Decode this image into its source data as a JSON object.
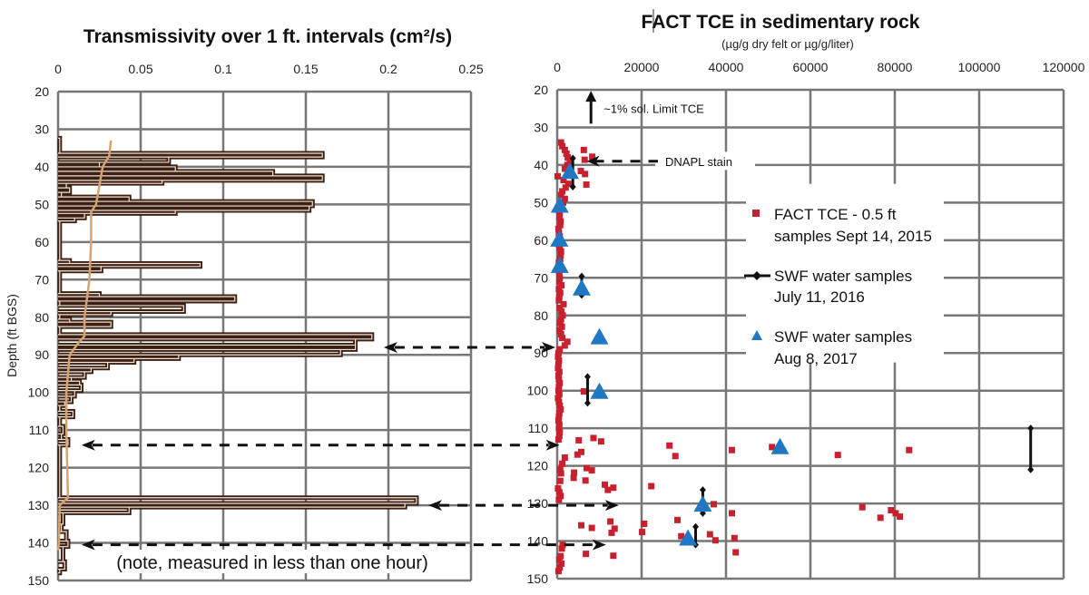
{
  "chart_data": [
    {
      "type": "line",
      "title": "Transmissivity over 1 ft. intervals (cm²/s)",
      "ylabel": "Depth (ft BGS)",
      "xlim": [
        0,
        0.25
      ],
      "ylim": [
        20,
        150
      ],
      "y_inverted": true,
      "x_axis_position": "top",
      "grid": true,
      "xticks": [
        "0",
        "0.05",
        "0.1",
        "0.15",
        "0.2",
        "0.25"
      ],
      "yticks": [
        "20",
        "30",
        "40",
        "50",
        "60",
        "70",
        "80",
        "90",
        "100",
        "110",
        "120",
        "130",
        "140",
        "150"
      ],
      "note": "(note, measured in less than one hour)",
      "colors": {
        "profile": "#3b2014",
        "smooth": "#d4a373"
      },
      "profile_intervals": [
        [
          32.4,
          36.4,
          0.001
        ],
        [
          36.4,
          37.4,
          0.16
        ],
        [
          37.4,
          38.8,
          0.067
        ],
        [
          38.8,
          40,
          0.025
        ],
        [
          40,
          41.2,
          0.071
        ],
        [
          41.2,
          42.4,
          0.13
        ],
        [
          42.4,
          43.6,
          0.16
        ],
        [
          43.6,
          44.4,
          0.063
        ],
        [
          44.4,
          45.6,
          0.005
        ],
        [
          45.6,
          46.8,
          0.007
        ],
        [
          46.8,
          48,
          0.002
        ],
        [
          48,
          49.2,
          0.043
        ],
        [
          49.2,
          50.4,
          0.154
        ],
        [
          50.4,
          51.6,
          0.152
        ],
        [
          51.6,
          52.4,
          0.071
        ],
        [
          52.4,
          53.6,
          0.016
        ],
        [
          53.6,
          54.4,
          0.01
        ],
        [
          54.4,
          64.9,
          0.001
        ],
        [
          64.9,
          65.7,
          0.007
        ],
        [
          65.7,
          66.5,
          0.086
        ],
        [
          66.5,
          67.7,
          0.026
        ],
        [
          67.7,
          73.7,
          0.001
        ],
        [
          73.7,
          74.5,
          0.025
        ],
        [
          74.5,
          75.7,
          0.107
        ],
        [
          75.7,
          76.9,
          0.001
        ],
        [
          76.9,
          78.5,
          0.076
        ],
        [
          78.5,
          79.3,
          0.032
        ],
        [
          79.3,
          80.5,
          0.001
        ],
        [
          80.5,
          81.3,
          0.007
        ],
        [
          81.3,
          82.5,
          0.032
        ],
        [
          82.5,
          84.6,
          0.001
        ],
        [
          84.6,
          85.8,
          0.19
        ],
        [
          85.8,
          87.4,
          0.18
        ],
        [
          87.4,
          88.6,
          0.18
        ],
        [
          88.6,
          90,
          0.171
        ],
        [
          90,
          91,
          0.073
        ],
        [
          91,
          92,
          0.046
        ],
        [
          92,
          93.5,
          0.03
        ],
        [
          93.5,
          94.5,
          0.02
        ],
        [
          94.5,
          96,
          0.016
        ],
        [
          96,
          97,
          0.008
        ],
        [
          97,
          98,
          0.013
        ],
        [
          98,
          99.5,
          0.014
        ],
        [
          99.5,
          101,
          0.01
        ],
        [
          101,
          102.5,
          0.008
        ],
        [
          102.5,
          103.5,
          0.004
        ],
        [
          103.5,
          105,
          0.001
        ],
        [
          105,
          106.5,
          0.009
        ],
        [
          106.5,
          109,
          0.001
        ],
        [
          109,
          111,
          0.003
        ],
        [
          111,
          112.5,
          0.002
        ],
        [
          112.5,
          114,
          0.006
        ],
        [
          114,
          128,
          0.001
        ],
        [
          128,
          129.5,
          0.217
        ],
        [
          129.5,
          130.5,
          0.21
        ],
        [
          130.5,
          132,
          0.043
        ],
        [
          132,
          135,
          0.003
        ],
        [
          135,
          137,
          0.002
        ],
        [
          137,
          139.5,
          0.005
        ],
        [
          139.5,
          141,
          0.006
        ],
        [
          141,
          145,
          0.003
        ],
        [
          145,
          147,
          0.004
        ],
        [
          147,
          148,
          0.001
        ]
      ],
      "smooth_line": [
        [
          33,
          0.032
        ],
        [
          37,
          0.031
        ],
        [
          40,
          0.027
        ],
        [
          45,
          0.025
        ],
        [
          50,
          0.023
        ],
        [
          52,
          0.02
        ],
        [
          60,
          0.02
        ],
        [
          70,
          0.019
        ],
        [
          80,
          0.016
        ],
        [
          85,
          0.016
        ],
        [
          87,
          0.012
        ],
        [
          90,
          0.007
        ],
        [
          100,
          0.005
        ],
        [
          110,
          0.005
        ],
        [
          128,
          0.006
        ],
        [
          130,
          0.001
        ],
        [
          140,
          0.0005
        ],
        [
          142,
          0
        ]
      ]
    },
    {
      "type": "scatter",
      "title": "FACT TCE in sedimentary rock",
      "subtitle": "(µg/g dry felt or µg/g/liter)",
      "xlim": [
        0,
        120000
      ],
      "ylim": [
        20,
        150
      ],
      "y_inverted": true,
      "x_axis_position": "top",
      "grid": true,
      "xticks": [
        "0",
        "20000",
        "40000",
        "60000",
        "80000",
        "100000",
        "120000"
      ],
      "yticks": [
        "20",
        "30",
        "40",
        "50",
        "60",
        "70",
        "80",
        "90",
        "100",
        "110",
        "120",
        "130",
        "140",
        "150"
      ],
      "legend_placement": "center",
      "series": [
        {
          "name": "FACT TCE - 0.5 ft samples Sept 14, 2015",
          "legend_lines": [
            "FACT TCE - 0.5 ft",
            "samples Sept 14, 2015"
          ],
          "marker": "square",
          "color": "#c8202f",
          "points": [
            [
              900,
              34
            ],
            [
              1200,
              35
            ],
            [
              1800,
              36
            ],
            [
              2200,
              37
            ],
            [
              2500,
              38
            ],
            [
              3000,
              39
            ],
            [
              2400,
              40
            ],
            [
              1800,
              41
            ],
            [
              100,
              43
            ],
            [
              1500,
              44
            ],
            [
              2600,
              45
            ],
            [
              2000,
              46
            ],
            [
              1200,
              47
            ],
            [
              900,
              48
            ],
            [
              1800,
              49
            ],
            [
              1400,
              50
            ],
            [
              600,
              51
            ],
            [
              400,
              52
            ],
            [
              600,
              53
            ],
            [
              500,
              54
            ],
            [
              800,
              55
            ],
            [
              700,
              56
            ],
            [
              300,
              57
            ],
            [
              400,
              58
            ],
            [
              600,
              59
            ],
            [
              500,
              60
            ],
            [
              300,
              61
            ],
            [
              600,
              62
            ],
            [
              900,
              63
            ],
            [
              800,
              64
            ],
            [
              700,
              65
            ],
            [
              400,
              66
            ],
            [
              300,
              67
            ],
            [
              400,
              68
            ],
            [
              500,
              69
            ],
            [
              600,
              70
            ],
            [
              500,
              71
            ],
            [
              1000,
              72
            ],
            [
              400,
              73
            ],
            [
              700,
              74
            ],
            [
              500,
              75
            ],
            [
              400,
              76
            ],
            [
              1500,
              77
            ],
            [
              600,
              78
            ],
            [
              1000,
              79
            ],
            [
              1300,
              80
            ],
            [
              900,
              81
            ],
            [
              700,
              82
            ],
            [
              1100,
              83
            ],
            [
              600,
              84
            ],
            [
              900,
              85
            ],
            [
              1200,
              86
            ],
            [
              2400,
              87
            ],
            [
              1800,
              88
            ],
            [
              600,
              89
            ],
            [
              300,
              90
            ],
            [
              200,
              91
            ],
            [
              400,
              92
            ],
            [
              300,
              93
            ],
            [
              200,
              94
            ],
            [
              500,
              95
            ],
            [
              300,
              96
            ],
            [
              400,
              97
            ],
            [
              600,
              98
            ],
            [
              400,
              99
            ],
            [
              300,
              100
            ],
            [
              500,
              101
            ],
            [
              200,
              102
            ],
            [
              400,
              103
            ],
            [
              600,
              104
            ],
            [
              800,
              105
            ],
            [
              500,
              106
            ],
            [
              400,
              107
            ],
            [
              300,
              108
            ],
            [
              500,
              109
            ],
            [
              400,
              110
            ],
            [
              600,
              111
            ],
            [
              500,
              112
            ],
            [
              300,
              113
            ],
            [
              700,
              121
            ],
            [
              900,
              122
            ],
            [
              700,
              124
            ],
            [
              200,
              126
            ],
            [
              500,
              127
            ],
            [
              800,
              128
            ],
            [
              400,
              129
            ],
            [
              1300,
              141
            ],
            [
              1100,
              142
            ],
            [
              800,
              144
            ],
            [
              500,
              145
            ],
            [
              1000,
              146
            ],
            [
              600,
              147
            ],
            [
              300,
              148
            ],
            [
              6300,
              36
            ],
            [
              6500,
              38.6
            ],
            [
              8300,
              37.8
            ],
            [
              5600,
              41.6
            ],
            [
              6600,
              42.4
            ],
            [
              6900,
              45.2
            ],
            [
              6300,
              100.2
            ],
            [
              5100,
              113.2
            ],
            [
              8600,
              112.6
            ],
            [
              10400,
              113.5
            ],
            [
              26600,
              114.6
            ],
            [
              28000,
              117.4
            ],
            [
              41400,
              115.8
            ],
            [
              50900,
              115
            ],
            [
              66500,
              117.1
            ],
            [
              83400,
              115.8
            ],
            [
              4800,
              117
            ],
            [
              5700,
              116.3
            ],
            [
              1800,
              117.8
            ],
            [
              1200,
              119.4
            ],
            [
              4000,
              121.8
            ],
            [
              3900,
              123.2
            ],
            [
              7000,
              120.6
            ],
            [
              8200,
              121.2
            ],
            [
              6700,
              123.9
            ],
            [
              11300,
              125
            ],
            [
              12000,
              126.4
            ],
            [
              13300,
              125.8
            ],
            [
              22300,
              125.4
            ],
            [
              37100,
              130.2
            ],
            [
              41400,
              132.6
            ],
            [
              72300,
              131
            ],
            [
              76600,
              133.8
            ],
            [
              79100,
              131.8
            ],
            [
              80200,
              132.6
            ],
            [
              81200,
              133.5
            ],
            [
              5700,
              135.8
            ],
            [
              8200,
              136.5
            ],
            [
              12600,
              134.8
            ],
            [
              13600,
              136.7
            ],
            [
              12900,
              137.8
            ],
            [
              20600,
              135.4
            ],
            [
              20100,
              137.6
            ],
            [
              28500,
              134.4
            ],
            [
              29400,
              138.7
            ],
            [
              36200,
              138.2
            ],
            [
              37500,
              139.8
            ],
            [
              42000,
              139.2
            ],
            [
              42300,
              143
            ],
            [
              6800,
              143.4
            ],
            [
              13300,
              143.9
            ]
          ]
        },
        {
          "name": "SWF water samples July 11, 2016",
          "legend_lines": [
            "SWF water samples",
            "July 11, 2016"
          ],
          "marker": "diamond-range",
          "color": "#111111",
          "ranges": [
            [
              3700,
              38.2,
              45.8
            ],
            [
              5800,
              69.6,
              74.6
            ],
            [
              7200,
              96.3,
              103.3
            ],
            [
              34500,
              126.4,
              132.6
            ],
            [
              32800,
              136.2,
              141
            ],
            [
              112200,
              110,
              121
            ]
          ]
        },
        {
          "name": "SWF water samples Aug 8, 2017",
          "legend_lines": [
            "SWF water samples",
            "Aug 8, 2017"
          ],
          "marker": "triangle",
          "color": "#1f78c1",
          "points": [
            [
              3000,
              42
            ],
            [
              600,
              51
            ],
            [
              500,
              60
            ],
            [
              600,
              67
            ],
            [
              5800,
              73
            ],
            [
              10000,
              86
            ],
            [
              10000,
              100.5
            ],
            [
              52800,
              115.2
            ],
            [
              34500,
              130.5
            ],
            [
              31000,
              139.5
            ]
          ]
        }
      ],
      "annotations": {
        "solubility": {
          "text": "~1% sol. Limit TCE",
          "x": 8000,
          "from_depth": 29,
          "to_depth": 21
        },
        "dnapl": {
          "text": "DNAPL stain",
          "x": 7000,
          "depth": 39
        }
      }
    }
  ],
  "linking_arrows": [
    {
      "depth": 88,
      "left_x": 0.195,
      "right_x": 0
    },
    {
      "depth": 114,
      "left_x": 0.012,
      "right_x": 1000
    },
    {
      "depth": 130,
      "left_x": 0.222,
      "right_x": 15000
    },
    {
      "depth": 140.5,
      "left_x": 0.012,
      "right_x": 12000
    }
  ]
}
